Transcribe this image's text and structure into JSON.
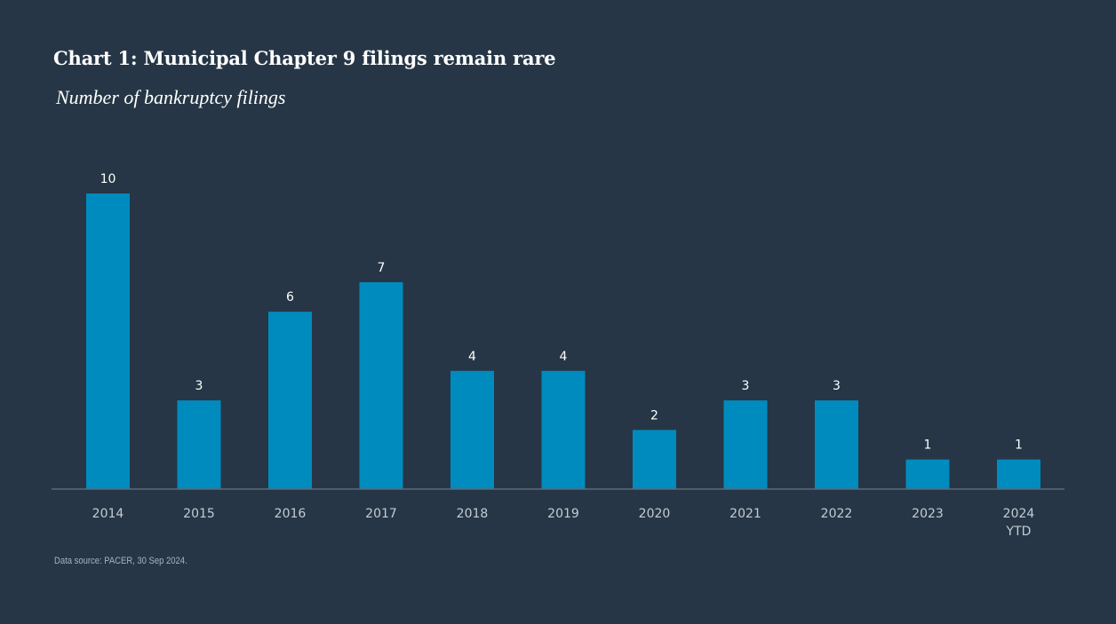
{
  "chart_data": {
    "type": "bar",
    "title": "Chart 1: Municipal Chapter 9 filings remain rare",
    "subtitle": "Number of bankruptcy filings",
    "categories": [
      [
        "2014"
      ],
      [
        "2015"
      ],
      [
        "2016"
      ],
      [
        "2017"
      ],
      [
        "2018"
      ],
      [
        "2019"
      ],
      [
        "2020"
      ],
      [
        "2021"
      ],
      [
        "2022"
      ],
      [
        "2023"
      ],
      [
        "2024",
        "YTD"
      ]
    ],
    "values": [
      10,
      3,
      6,
      7,
      4,
      4,
      2,
      3,
      3,
      1,
      1
    ],
    "ylim": [
      0,
      10
    ],
    "grid": false,
    "legend": "none",
    "bar_color": "#008bbf",
    "axis_color": "#5b6a79",
    "source": "Data source: PACER, 30 Sep 2024."
  }
}
